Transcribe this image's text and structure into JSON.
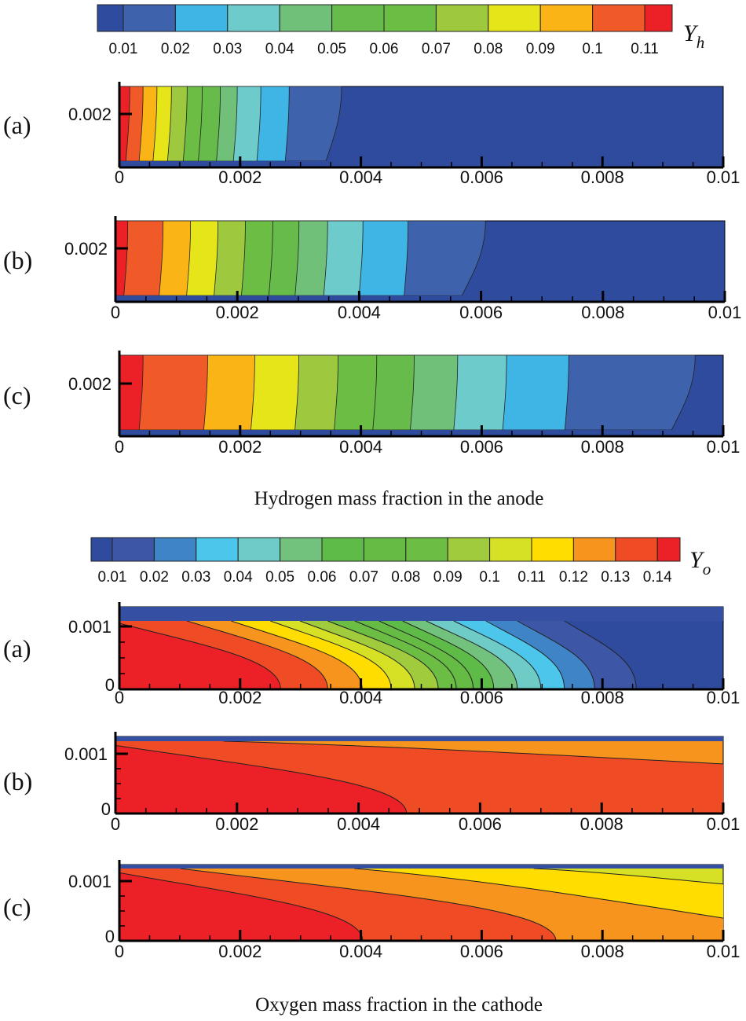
{
  "chart_data": [
    {
      "type": "heatmap",
      "group": "hydrogen",
      "caption": "Hydrogen mass fraction in the anode",
      "colorbar": {
        "symbol": "Y",
        "subscript": "h",
        "labels": [
          "0.01",
          "0.02",
          "0.03",
          "0.04",
          "0.05",
          "0.06",
          "0.07",
          "0.08",
          "0.09",
          "0.1",
          "0.11"
        ],
        "colors": [
          "#2f4b9e",
          "#3f62ad",
          "#3fb5e6",
          "#6ecbcb",
          "#70c07a",
          "#66bb4a",
          "#6cbd44",
          "#9ec93e",
          "#e5e51a",
          "#fbb416",
          "#f05a28",
          "#ec2027"
        ]
      },
      "xlim": [
        0,
        0.01
      ],
      "x_tick_labels": [
        "0",
        "0.002",
        "0.004",
        "0.006",
        "0.008",
        "0.01"
      ],
      "y_tick_labels": [
        "0.002"
      ],
      "panels": [
        {
          "label": "(a)",
          "contour_x": [
            0.00014,
            0.00036,
            0.00059,
            0.00083,
            0.00109,
            0.00134,
            0.00164,
            0.00192,
            0.00231,
            0.00278,
            0.00355
          ]
        },
        {
          "label": "(b)",
          "contour_x": [
            0.00017,
            0.00075,
            0.0012,
            0.00165,
            0.0021,
            0.00255,
            0.00298,
            0.00345,
            0.00403,
            0.00477,
            0.00588
          ]
        },
        {
          "label": "(c)",
          "contour_x": [
            0.00036,
            0.00143,
            0.00221,
            0.00294,
            0.00359,
            0.00423,
            0.00485,
            0.00557,
            0.00638,
            0.00741,
            0.00934
          ]
        }
      ]
    },
    {
      "type": "heatmap",
      "group": "oxygen",
      "caption": "Oxygen mass fraction in the cathode",
      "colorbar": {
        "symbol": "Y",
        "subscript": "o",
        "labels": [
          "0.01",
          "0.02",
          "0.03",
          "0.04",
          "0.05",
          "0.06",
          "0.07",
          "0.08",
          "0.09",
          "0.1",
          "0.11",
          "0.12",
          "0.13",
          "0.14"
        ],
        "colors": [
          "#2f4b9e",
          "#3d56a6",
          "#3f84c6",
          "#4cc6ea",
          "#6ecbc6",
          "#72c27e",
          "#5fbb47",
          "#66bb45",
          "#6cbd44",
          "#a0cb3c",
          "#d6e125",
          "#ffdd00",
          "#f7941d",
          "#ef4b24",
          "#ec2027"
        ]
      },
      "xlim": [
        0,
        0.01
      ],
      "x_tick_labels": [
        "0",
        "0.002",
        "0.004",
        "0.006",
        "0.008",
        "0.01"
      ],
      "y_tick_labels": [
        "0",
        "0.001"
      ],
      "panels": [
        {
          "label": "(a)",
          "background": "#2f4b9e",
          "contours": [
            {
              "start": [
                0,
                0.00105
              ],
              "end": [
                0.00267,
                0
              ],
              "inner": "#ec2027"
            },
            {
              "start": [
                0.00112,
                0.00109
              ],
              "end": [
                0.00345,
                0
              ],
              "inner": "#ef4b24"
            },
            {
              "start": [
                0.00185,
                0.00109
              ],
              "end": [
                0.00402,
                0
              ],
              "inner": "#f7941d"
            },
            {
              "start": [
                0.0025,
                0.00109
              ],
              "end": [
                0.0045,
                0
              ],
              "inner": "#ffdd00"
            },
            {
              "start": [
                0.00299,
                0.00109
              ],
              "end": [
                0.00489,
                0
              ],
              "inner": "#d6e125"
            },
            {
              "start": [
                0.00345,
                0.00109
              ],
              "end": [
                0.00528,
                0
              ],
              "inner": "#a0cb3c"
            },
            {
              "start": [
                0.0039,
                0.00109
              ],
              "end": [
                0.00558,
                0
              ],
              "inner": "#6cbd44"
            },
            {
              "start": [
                0.0043,
                0.00109
              ],
              "end": [
                0.00586,
                0
              ],
              "inner": "#66bb45"
            },
            {
              "start": [
                0.00469,
                0.00109
              ],
              "end": [
                0.0062,
                0
              ],
              "inner": "#5fbb47"
            },
            {
              "start": [
                0.00508,
                0.00109
              ],
              "end": [
                0.00659,
                0
              ],
              "inner": "#72c27e"
            },
            {
              "start": [
                0.00554,
                0.00109
              ],
              "end": [
                0.00698,
                0
              ],
              "inner": "#6ecbc6"
            },
            {
              "start": [
                0.00607,
                0.00109
              ],
              "end": [
                0.00737,
                0
              ],
              "inner": "#4cc6ea"
            },
            {
              "start": [
                0.00659,
                0.00109
              ],
              "end": [
                0.00787,
                0
              ],
              "inner": "#3f84c6"
            },
            {
              "start": [
                0.00737,
                0.00109
              ],
              "end": [
                0.00856,
                0
              ],
              "inner": "#3d56a6"
            }
          ]
        },
        {
          "label": "(b)",
          "background": "#f7941d",
          "contours": [
            {
              "start": [
                0,
                0.00114
              ],
              "end": [
                0.00479,
                0
              ],
              "inner": "#ec2027"
            },
            {
              "start": [
                0.00178,
                0.00121
              ],
              "end": [
                0.01,
                0.00083
              ],
              "inner": "#ef4b24"
            }
          ]
        },
        {
          "label": "(c)",
          "background": "#d6e125",
          "contours": [
            {
              "start": [
                0,
                0.00114
              ],
              "end": [
                0.00403,
                0
              ],
              "inner": "#ec2027"
            },
            {
              "start": [
                0.00101,
                0.00121
              ],
              "end": [
                0.00723,
                0
              ],
              "inner": "#ef4b24"
            },
            {
              "start": [
                0.00389,
                0.00121
              ],
              "end": [
                0.01,
                0.00038
              ],
              "inner": "#f7941d"
            },
            {
              "start": [
                0.00686,
                0.00121
              ],
              "end": [
                0.01,
                0.00095
              ],
              "inner": "#ffdd00"
            }
          ]
        }
      ]
    }
  ]
}
